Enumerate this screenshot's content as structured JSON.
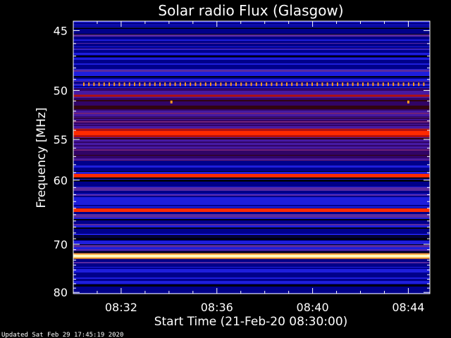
{
  "chart_data": {
    "type": "heatmap",
    "title": "Solar radio Flux (Glasgow)",
    "xlabel": "Start Time (21-Feb-20 08:30:00)",
    "ylabel": "Frequency [MHz]",
    "x_tick_labels": [
      "08:32",
      "08:36",
      "08:40",
      "08:44"
    ],
    "y_tick_labels": [
      "45",
      "50",
      "55",
      "60",
      "70",
      "80"
    ],
    "x_tick_values_min": [
      2,
      6,
      10,
      14
    ],
    "y_tick_values_mhz": [
      45,
      50,
      55,
      60,
      70,
      80
    ],
    "xlim_minutes": [
      0,
      14.9
    ],
    "ylim_mhz": [
      44.3,
      80.3
    ],
    "y_scale": "reciprocal",
    "colormap": [
      "#000010",
      "#00008a",
      "#1e1edc",
      "#5a2aa0",
      "#b01010",
      "#ff2a00",
      "#ff9a20",
      "#fff8c0"
    ],
    "emission_bands_mhz": [
      {
        "freq": 49.4,
        "level": "dotted-bright"
      },
      {
        "freq": 50.5,
        "level": "medium"
      },
      {
        "freq": 54.3,
        "level": "strong"
      },
      {
        "freq": 59.4,
        "level": "strong"
      },
      {
        "freq": 64.3,
        "level": "strong"
      },
      {
        "freq": 72.2,
        "level": "saturated"
      }
    ],
    "axis_color": "#ffffff",
    "background": "#000000"
  },
  "footer": "Updated Sat Feb 29 17:45:19 2020"
}
